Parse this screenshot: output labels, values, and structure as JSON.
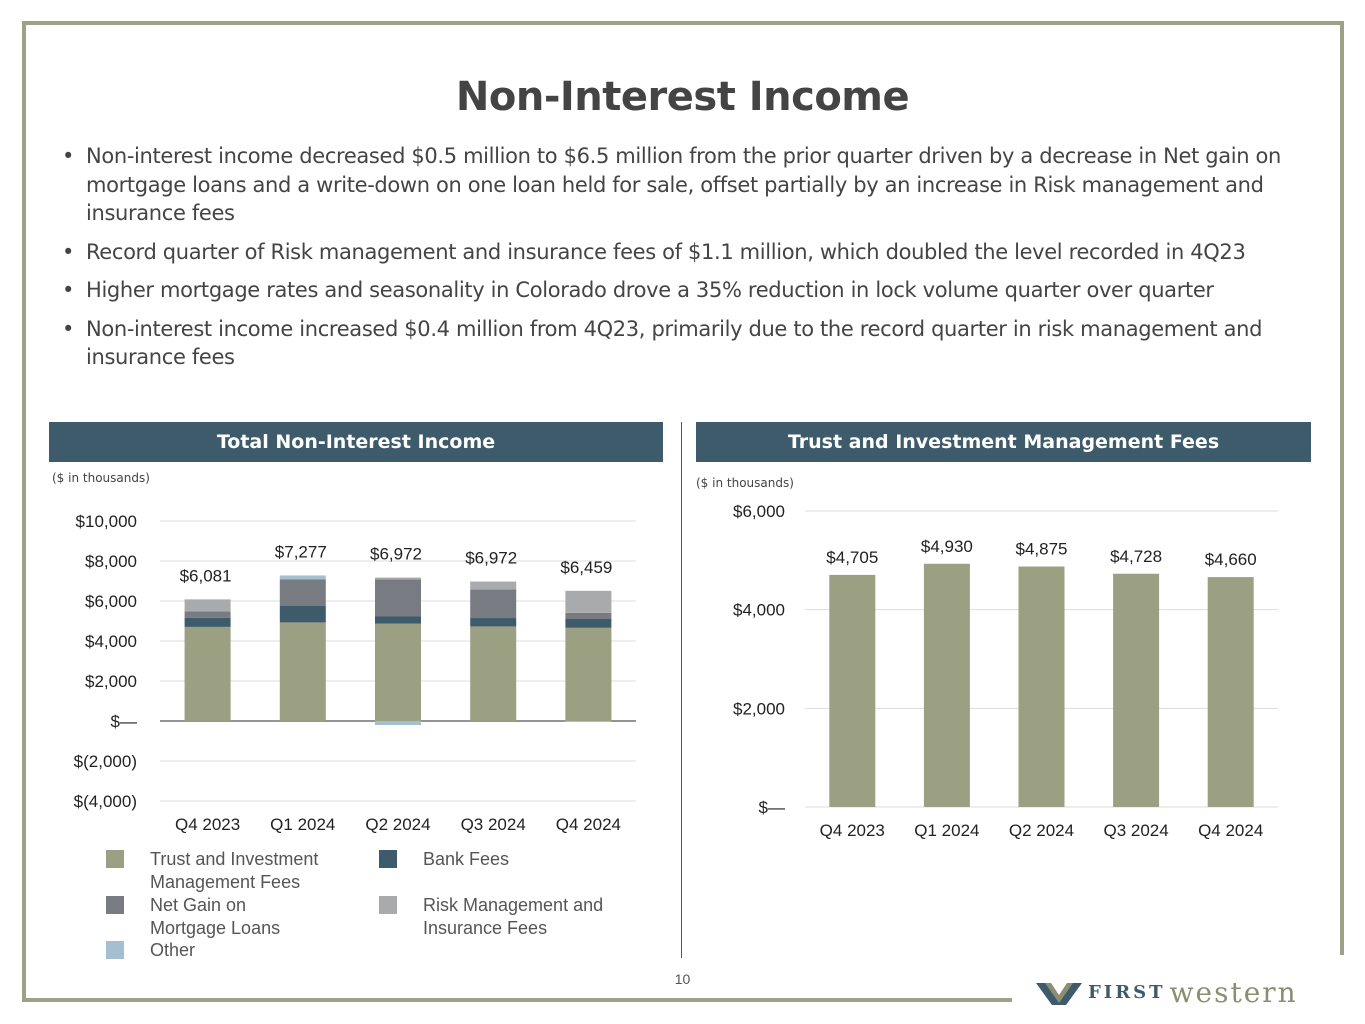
{
  "title": "Non-Interest Income",
  "bullets": [
    "Non-interest income decreased $0.5 million to $6.5 million from the prior quarter driven by a decrease in Net gain on mortgage loans and a write-down on one loan held for sale, offset partially by an increase in Risk management and insurance fees",
    "Record quarter of Risk management and insurance fees of $1.1 million, which doubled the level recorded in 4Q23",
    "Higher mortgage rates and seasonality in Colorado drove a 35% reduction in lock volume quarter over quarter",
    "Non-interest income increased $0.4 million from 4Q23, primarily due to the record quarter in risk management and insurance fees"
  ],
  "bullet_glyph": "•",
  "left_panel": {
    "header": "Total Non-Interest Income",
    "units": "($ in thousands)"
  },
  "right_panel": {
    "header": "Trust and Investment Management Fees",
    "units": "($ in thousands)"
  },
  "legend": [
    {
      "label": "Trust and Investment Management Fees",
      "color": "#9ba083"
    },
    {
      "label": "Bank Fees",
      "color": "#3e5b6b"
    },
    {
      "label": "Net Gain on Mortgage Loans",
      "color": "#797b82"
    },
    {
      "label": "Risk Management and Insurance Fees",
      "color": "#a9aaab"
    },
    {
      "label": "Other",
      "color": "#a3bfd0"
    }
  ],
  "page_number": "10",
  "logo": {
    "first": "FIRST",
    "western": "western"
  },
  "chart_data": [
    {
      "type": "bar",
      "stacked": true,
      "title": "Total Non-Interest Income",
      "units": "($ in thousands)",
      "categories": [
        "Q4 2023",
        "Q1 2024",
        "Q2 2024",
        "Q3 2024",
        "Q4 2024"
      ],
      "series": [
        {
          "name": "Trust and Investment Management Fees",
          "color": "#9ba083",
          "values": [
            4705,
            4930,
            4875,
            4728,
            4660
          ]
        },
        {
          "name": "Bank Fees",
          "color": "#3e5b6b",
          "values": [
            450,
            820,
            350,
            420,
            440
          ]
        },
        {
          "name": "Net Gain on Mortgage Loans",
          "color": "#797b82",
          "values": [
            326,
            1327,
            1847,
            1424,
            309
          ]
        },
        {
          "name": "Risk Management and Insurance Fees",
          "color": "#a9aaab",
          "values": [
            600,
            0,
            100,
            400,
            1100
          ]
        },
        {
          "name": "Other",
          "color": "#a3bfd0",
          "values": [
            0,
            200,
            -200,
            0,
            -50
          ]
        }
      ],
      "totals": [
        "$6,081",
        "$7,277",
        "$6,972",
        "$6,972",
        "$6,459"
      ],
      "ylim": [
        -4000,
        10000
      ],
      "yticks": [
        10000,
        8000,
        6000,
        4000,
        2000,
        0,
        -2000,
        -4000
      ],
      "ytick_labels": [
        "$10,000",
        "$8,000",
        "$6,000",
        "$4,000",
        "$2,000",
        "$—",
        "$(2,000)",
        "$(4,000)"
      ],
      "grid": true
    },
    {
      "type": "bar",
      "title": "Trust and Investment Management Fees",
      "units": "($ in thousands)",
      "categories": [
        "Q4 2023",
        "Q1 2024",
        "Q2 2024",
        "Q3 2024",
        "Q4 2024"
      ],
      "values": [
        4705,
        4930,
        4875,
        4728,
        4660
      ],
      "value_labels": [
        "$4,705",
        "$4,930",
        "$4,875",
        "$4,728",
        "$4,660"
      ],
      "color": "#9ba083",
      "ylim": [
        0,
        6000
      ],
      "yticks": [
        6000,
        4000,
        2000,
        0
      ],
      "ytick_labels": [
        "$6,000",
        "$4,000",
        "$2,000",
        "$—"
      ],
      "grid": true
    }
  ]
}
